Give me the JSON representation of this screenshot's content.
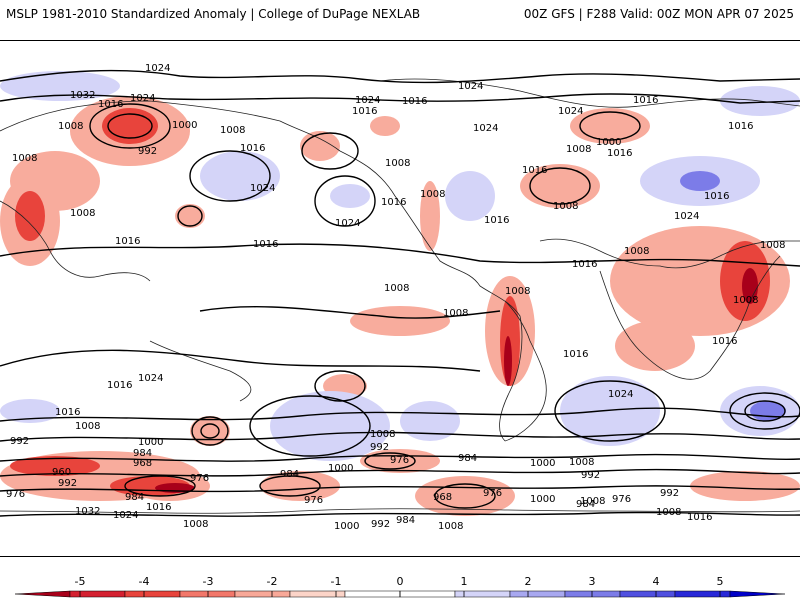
{
  "header": {
    "title_left": "MSLP 1981-2010 Standardized Anomaly | College of DuPage NEXLAB",
    "title_right": "00Z GFS | F288 Valid: 00Z MON APR 07 2025"
  },
  "isobar_labels": [
    {
      "t": "1024"
    },
    {
      "t": "1032"
    },
    {
      "t": "1024"
    },
    {
      "t": "1016"
    },
    {
      "t": "1000"
    },
    {
      "t": "1008"
    },
    {
      "t": "1008"
    },
    {
      "t": "992"
    },
    {
      "t": "1008"
    },
    {
      "t": "1016"
    },
    {
      "t": "1024"
    },
    {
      "t": "1008"
    },
    {
      "t": "1016"
    },
    {
      "t": "1016"
    },
    {
      "t": "1024"
    },
    {
      "t": "1016"
    },
    {
      "t": "1008"
    },
    {
      "t": "1008"
    },
    {
      "t": "1024"
    },
    {
      "t": "1016"
    },
    {
      "t": "1024"
    },
    {
      "t": "1016"
    },
    {
      "t": "1024"
    },
    {
      "t": "1000"
    },
    {
      "t": "1008"
    },
    {
      "t": "1016"
    },
    {
      "t": "1016"
    },
    {
      "t": "1008"
    },
    {
      "t": "1016"
    },
    {
      "t": "1024"
    },
    {
      "t": "1016"
    },
    {
      "t": "1008"
    },
    {
      "t": "1016"
    },
    {
      "t": "1008"
    },
    {
      "t": "1008"
    },
    {
      "t": "1008"
    },
    {
      "t": "1008"
    },
    {
      "t": "1008"
    },
    {
      "t": "1016"
    },
    {
      "t": "1016"
    },
    {
      "t": "1024"
    },
    {
      "t": "1016"
    },
    {
      "t": "1016"
    },
    {
      "t": "1024"
    },
    {
      "t": "1016"
    },
    {
      "t": "1024"
    },
    {
      "t": "1016"
    },
    {
      "t": "1008"
    },
    {
      "t": "992"
    },
    {
      "t": "1000"
    },
    {
      "t": "984"
    },
    {
      "t": "968"
    },
    {
      "t": "960"
    },
    {
      "t": "992"
    },
    {
      "t": "976"
    },
    {
      "t": "976"
    },
    {
      "t": "984"
    },
    {
      "t": "1016"
    },
    {
      "t": "1032"
    },
    {
      "t": "1024"
    },
    {
      "t": "1008"
    },
    {
      "t": "984"
    },
    {
      "t": "976"
    },
    {
      "t": "1000"
    },
    {
      "t": "1008"
    },
    {
      "t": "992"
    },
    {
      "t": "976"
    },
    {
      "t": "984"
    },
    {
      "t": "1000"
    },
    {
      "t": "968"
    },
    {
      "t": "976"
    },
    {
      "t": "1008"
    },
    {
      "t": "1000"
    },
    {
      "t": "992"
    },
    {
      "t": "984"
    },
    {
      "t": "1008"
    },
    {
      "t": "1000"
    },
    {
      "t": "1008"
    },
    {
      "t": "992"
    },
    {
      "t": "984"
    },
    {
      "t": "976"
    },
    {
      "t": "992"
    },
    {
      "t": "1008"
    },
    {
      "t": "1016"
    }
  ],
  "colorbar": {
    "ticks": [
      "-5",
      "-4",
      "-3",
      "-2",
      "-1",
      "0",
      "1",
      "2",
      "3",
      "4",
      "5"
    ],
    "colors": [
      "#a8001a",
      "#d42030",
      "#e8443c",
      "#f2776a",
      "#f8a898",
      "#fcd4c8",
      "#ffffff",
      "#ffffff",
      "#d4d4f8",
      "#a8a8f0",
      "#7c7ce8",
      "#5050e0",
      "#2828d8",
      "#0000c8"
    ]
  }
}
